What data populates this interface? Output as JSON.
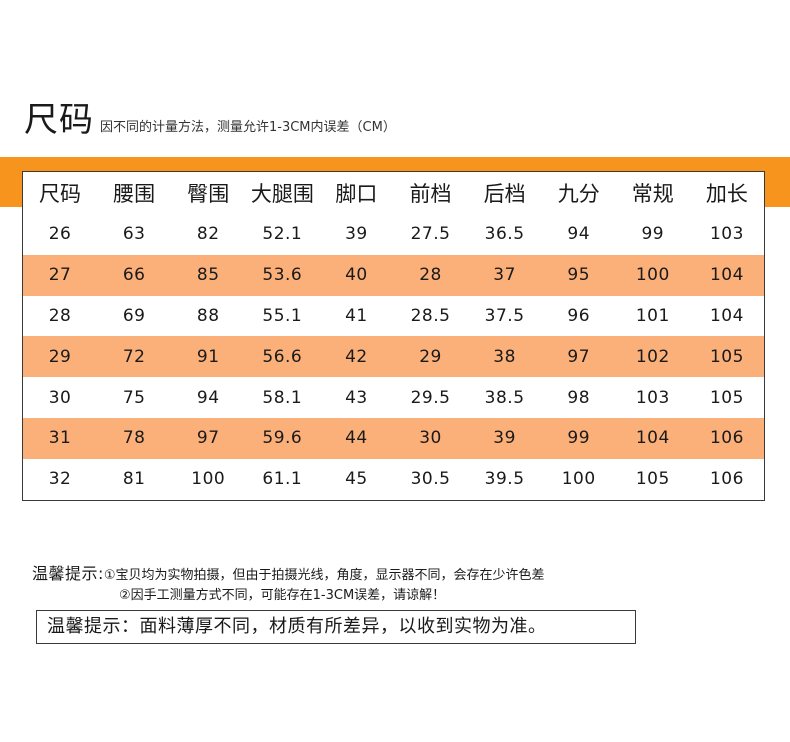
{
  "title": {
    "main": "尺码",
    "subtitle": "因不同的计量方法，测量允许1-3CM内误差（CM）"
  },
  "table": {
    "headers": [
      "尺码",
      "腰围",
      "臀围",
      "大腿围",
      "脚口",
      "前档",
      "后档",
      "九分",
      "常规",
      "加长"
    ],
    "rows": [
      [
        "26",
        "63",
        "82",
        "52.1",
        "39",
        "27.5",
        "36.5",
        "94",
        "99",
        "103"
      ],
      [
        "27",
        "66",
        "85",
        "53.6",
        "40",
        "28",
        "37",
        "95",
        "100",
        "104"
      ],
      [
        "28",
        "69",
        "88",
        "55.1",
        "41",
        "28.5",
        "37.5",
        "96",
        "101",
        "104"
      ],
      [
        "29",
        "72",
        "91",
        "56.6",
        "42",
        "29",
        "38",
        "97",
        "102",
        "105"
      ],
      [
        "30",
        "75",
        "94",
        "58.1",
        "43",
        "29.5",
        "38.5",
        "98",
        "103",
        "105"
      ],
      [
        "31",
        "78",
        "97",
        "59.6",
        "44",
        "30",
        "39",
        "99",
        "104",
        "106"
      ],
      [
        "32",
        "81",
        "100",
        "61.1",
        "45",
        "30.5",
        "39.5",
        "100",
        "105",
        "106"
      ]
    ]
  },
  "tips": {
    "label": "温馨提示:",
    "line1": "①宝贝均为实物拍摄，但由于拍摄光线，角度，显示器不同，会存在少许色差",
    "line2": "②因手工测量方式不同，可能存在1-3CM误差，请谅解！"
  },
  "notice": "温馨提示：面料薄厚不同，材质有所差异，以收到实物为准。",
  "colors": {
    "header_band": "#f7941d",
    "row_band": "#fbb07a",
    "border": "#3a3a3a"
  }
}
